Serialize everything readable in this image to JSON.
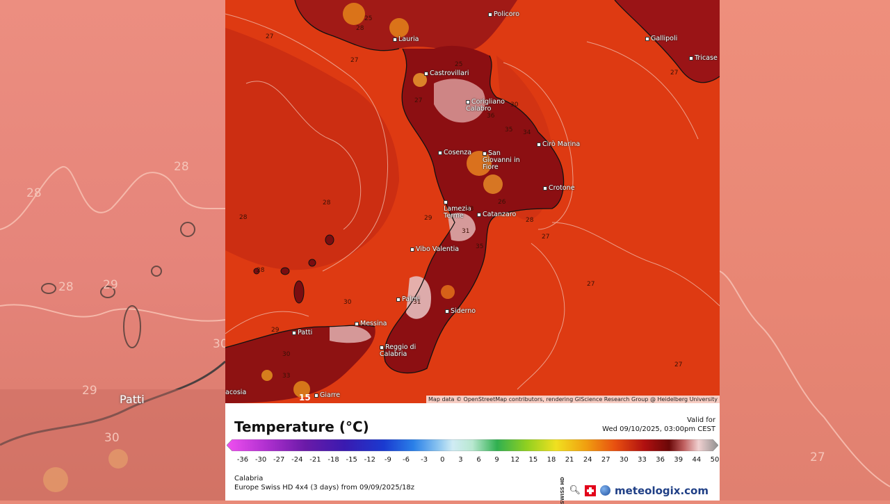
{
  "background": {
    "left_labels": [
      "28",
      "28",
      "28",
      "29",
      "29",
      "30",
      "30"
    ],
    "left_towns": [
      "Patti"
    ],
    "right_labels": [
      "27"
    ]
  },
  "map": {
    "cities": [
      "Policoro",
      "Gallipoli",
      "Tricase",
      "Lauria",
      "Castrovillari",
      "Corigliano Calabro",
      "Cosenza",
      "San Giovanni in Fiore",
      "Cirò Marina",
      "Crotone",
      "Lamezia Terme",
      "Catanzaro",
      "Vibo Valentia",
      "Palmi",
      "Siderno",
      "Messina",
      "Patti",
      "Reggio di Calabria",
      "Giarre",
      "acosia"
    ],
    "isolines": [
      "27",
      "27",
      "27",
      "25",
      "28",
      "28",
      "28",
      "28",
      "29",
      "30",
      "30",
      "31",
      "33",
      "34",
      "35",
      "35",
      "36",
      "26",
      "28",
      "27",
      "27",
      "27",
      "29",
      "30",
      "33",
      "31",
      "27",
      "25",
      "15"
    ],
    "attribution": "Map data © OpenStreetMap contributors, rendering GIScience Research Group @ Heidelberg University"
  },
  "legend": {
    "title": "Temperature (°C)",
    "valid_label": "Valid for",
    "valid_time": "Wed 09/10/2025, 03:00pm CEST",
    "ticks": [
      "-36",
      "-30",
      "-27",
      "-24",
      "-21",
      "-18",
      "-15",
      "-12",
      "-9",
      "-6",
      "-3",
      "0",
      "3",
      "6",
      "9",
      "12",
      "15",
      "18",
      "21",
      "24",
      "27",
      "30",
      "33",
      "36",
      "39",
      "44",
      "50"
    ],
    "region": "Calabria",
    "model_run": "Europe Swiss HD 4x4 (3 days)  from  09/09/2025/18z",
    "swiss_hd_label": "SWISS HD",
    "brand": "meteologix.com"
  },
  "colors": {
    "sea_warm": "#de3a12",
    "land_hot": "#8c0f12",
    "land_very_hot": "#e3b8b8",
    "brand": "#1f3f86"
  }
}
